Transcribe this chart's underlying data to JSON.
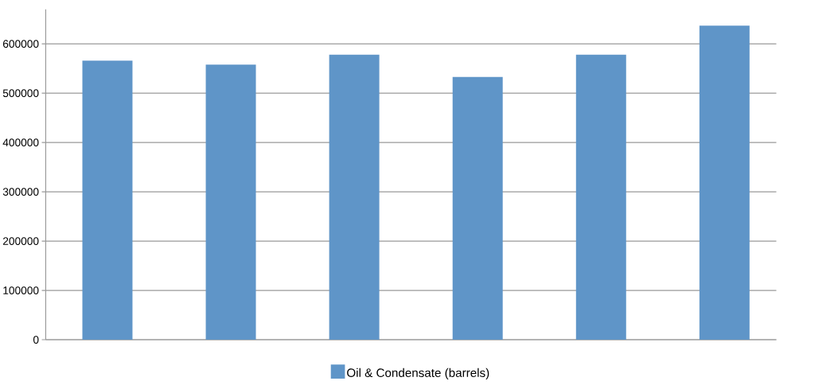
{
  "chart_data": {
    "type": "bar",
    "categories": [
      null,
      null,
      null,
      null,
      null,
      null
    ],
    "series": [
      {
        "name": "Oil & Condensate (barrels)",
        "color": "#5f95c8",
        "values": [
          566000,
          558000,
          578000,
          533000,
          578000,
          637000
        ]
      }
    ],
    "ylim": [
      0,
      670000
    ],
    "yticks": [
      0,
      100000,
      200000,
      300000,
      400000,
      500000,
      600000
    ],
    "grid": "y",
    "legend": "bottom"
  }
}
